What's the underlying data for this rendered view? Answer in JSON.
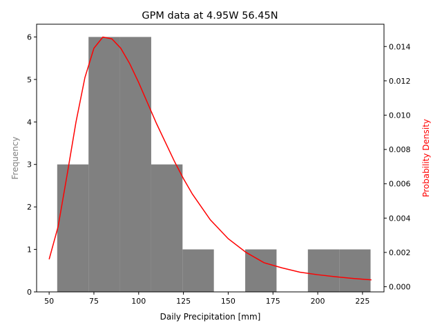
{
  "chart_data": {
    "type": "bar",
    "title": "GPM data at 4.95W 56.45N",
    "xlabel": "Daily Precipitation [mm]",
    "ylabel_left": "Frequency",
    "ylabel_right": "Probability Density",
    "xlim": [
      43,
      237
    ],
    "ylim_left": [
      0,
      6.3
    ],
    "ylim_right": [
      -0.0003,
      0.0153
    ],
    "x_ticks": [
      50,
      75,
      100,
      125,
      150,
      175,
      200,
      225
    ],
    "y_ticks_left": [
      0,
      1,
      2,
      3,
      4,
      5,
      6
    ],
    "y_ticks_right": [
      0.0,
      0.002,
      0.004,
      0.006,
      0.008,
      0.01,
      0.012,
      0.014
    ],
    "histogram": {
      "bins": [
        {
          "x0": 54.5,
          "x1": 72.0,
          "count": 3
        },
        {
          "x0": 72.0,
          "x1": 89.5,
          "count": 6
        },
        {
          "x0": 89.5,
          "x1": 107.0,
          "count": 6
        },
        {
          "x0": 107.0,
          "x1": 124.5,
          "count": 3
        },
        {
          "x0": 124.5,
          "x1": 142.0,
          "count": 1
        },
        {
          "x0": 142.0,
          "x1": 159.5,
          "count": 0
        },
        {
          "x0": 159.5,
          "x1": 177.0,
          "count": 1
        },
        {
          "x0": 177.0,
          "x1": 194.5,
          "count": 0
        },
        {
          "x0": 194.5,
          "x1": 212.0,
          "count": 1
        },
        {
          "x0": 212.0,
          "x1": 229.5,
          "count": 1
        }
      ],
      "color": "#808080"
    },
    "pdf_curve": {
      "color": "#ff0000",
      "x": [
        50,
        55,
        60,
        65,
        70,
        75,
        80,
        85,
        90,
        95,
        100,
        105,
        110,
        115,
        120,
        125,
        130,
        140,
        150,
        160,
        170,
        180,
        190,
        200,
        210,
        220,
        230
      ],
      "y": [
        0.0016,
        0.0035,
        0.0065,
        0.0096,
        0.0122,
        0.0139,
        0.01455,
        0.01445,
        0.0139,
        0.013,
        0.0119,
        0.0107,
        0.0095,
        0.0084,
        0.0073,
        0.0063,
        0.0054,
        0.0039,
        0.0028,
        0.002,
        0.0014,
        0.0011,
        0.00085,
        0.0007,
        0.00058,
        0.00048,
        0.0004
      ]
    },
    "colors": {
      "left_label": "#808080",
      "right_label": "#ff0000"
    }
  }
}
